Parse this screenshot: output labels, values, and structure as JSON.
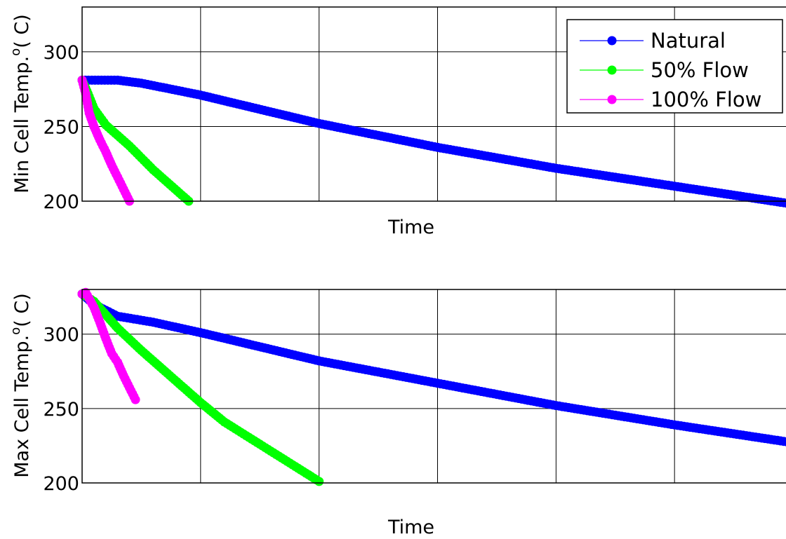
{
  "chart_data": [
    {
      "type": "line",
      "xlabel": "Time",
      "ylabel": "Min Cell Temp.",
      "ylabel_sup": "o",
      "ylabel_unit": "( C)",
      "ylim": [
        200,
        330
      ],
      "xlim": [
        0,
        6
      ],
      "yticks": [
        200,
        250,
        300
      ],
      "yticks_labels": [
        "200",
        "250",
        "300"
      ],
      "xticks": [
        0,
        1,
        2,
        3,
        4,
        5,
        6
      ],
      "grid": true,
      "legend": {
        "position": "top-right",
        "entries": [
          "Natural",
          "50% Flow",
          "100% Flow"
        ]
      },
      "series": [
        {
          "name": "Natural",
          "color": "#0000ff",
          "x": [
            0,
            0.3,
            0.5,
            1.0,
            2.0,
            3.0,
            4.0,
            5.0,
            6.0
          ],
          "y": [
            281,
            281,
            279,
            271,
            252,
            236,
            222,
            210,
            198
          ]
        },
        {
          "name": "50% Flow",
          "color": "#00ff00",
          "x": [
            0,
            0.05,
            0.1,
            0.2,
            0.3,
            0.4,
            0.5,
            0.6,
            0.7,
            0.8,
            0.9
          ],
          "y": [
            281,
            272,
            262,
            251,
            244,
            237,
            229,
            221,
            214,
            207,
            200
          ]
        },
        {
          "name": "100% Flow",
          "color": "#ff00ff",
          "x": [
            0,
            0.03,
            0.06,
            0.1,
            0.15,
            0.2,
            0.25,
            0.3,
            0.35,
            0.4
          ],
          "y": [
            281,
            272,
            259,
            250,
            241,
            233,
            224,
            216,
            208,
            200
          ]
        }
      ]
    },
    {
      "type": "line",
      "xlabel": "Time",
      "ylabel": "Max Cell Temp.",
      "ylabel_sup": "o",
      "ylabel_unit": "( C)",
      "ylim": [
        200,
        330
      ],
      "xlim": [
        0,
        6
      ],
      "yticks": [
        200,
        250,
        300
      ],
      "yticks_labels": [
        "200",
        "250",
        "300"
      ],
      "xticks": [
        0,
        1,
        2,
        3,
        4,
        5,
        6
      ],
      "grid": true,
      "series": [
        {
          "name": "Natural",
          "color": "#0000ff",
          "x": [
            0,
            0.1,
            0.3,
            0.6,
            1.0,
            2.0,
            3.0,
            4.0,
            5.0,
            6.0
          ],
          "y": [
            327,
            320,
            312,
            308,
            301,
            282,
            267,
            252,
            239,
            227
          ]
        },
        {
          "name": "50% Flow",
          "color": "#00ff00",
          "x": [
            0,
            0.1,
            0.2,
            0.3,
            0.5,
            0.8,
            1.0,
            1.2,
            1.5,
            1.8,
            2.0
          ],
          "y": [
            327,
            322,
            313,
            304,
            289,
            268,
            254,
            241,
            226,
            211,
            201
          ]
        },
        {
          "name": "100% Flow",
          "color": "#ff00ff",
          "x": [
            0,
            0.03,
            0.1,
            0.15,
            0.2,
            0.25,
            0.3,
            0.35,
            0.4,
            0.45
          ],
          "y": [
            327,
            328,
            318,
            308,
            297,
            287,
            281,
            272,
            264,
            256
          ]
        }
      ]
    }
  ]
}
